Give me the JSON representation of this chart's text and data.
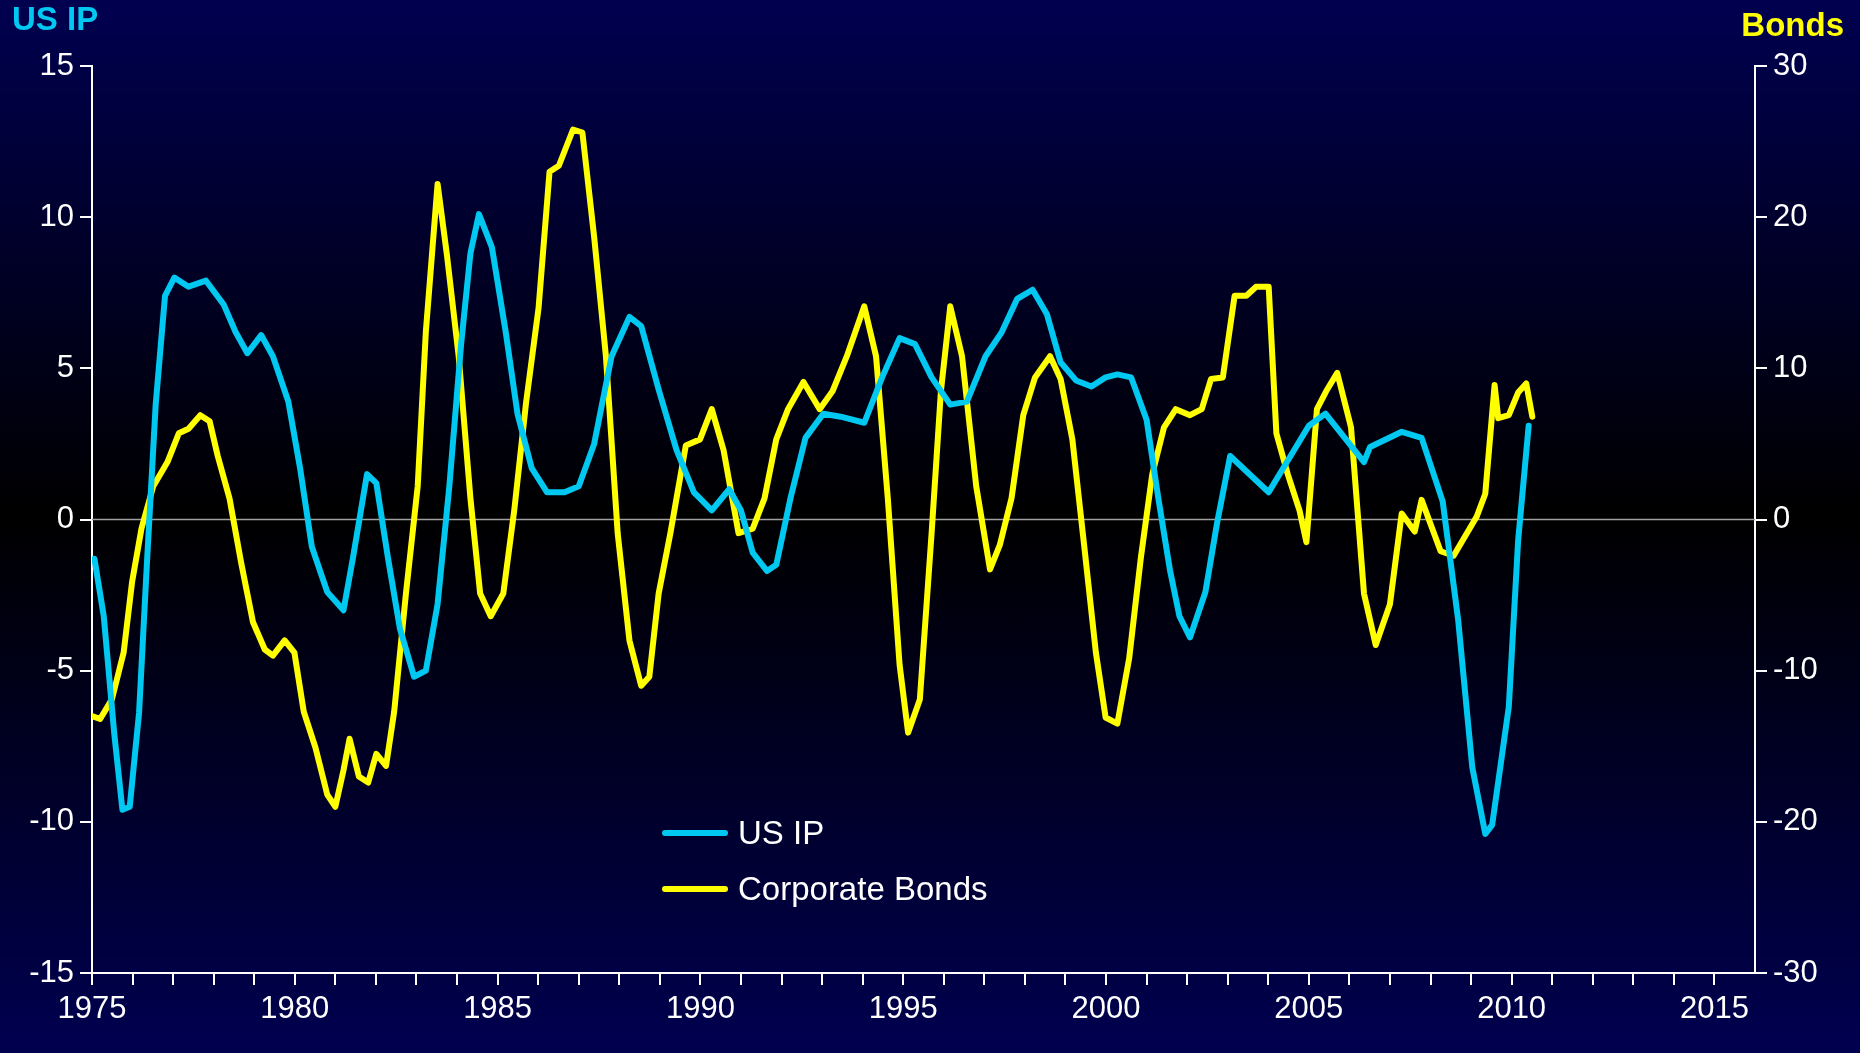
{
  "chart_data": {
    "type": "line",
    "ylabel": "US IP",
    "y2label": "Bonds",
    "legend": "bottom",
    "line_style": "solid",
    "xlim": [
      1975,
      2016
    ],
    "xticks": [
      1975,
      {
        "value": 1976,
        "label": null
      },
      {
        "value": 1977,
        "label": null
      },
      {
        "value": 1978,
        "label": null
      },
      {
        "value": 1979,
        "label": null
      },
      1980,
      {
        "value": 1981,
        "label": null
      },
      {
        "value": 1982,
        "label": null
      },
      {
        "value": 1983,
        "label": null
      },
      {
        "value": 1984,
        "label": null
      },
      1985,
      {
        "value": 1986,
        "label": null
      },
      {
        "value": 1987,
        "label": null
      },
      {
        "value": 1988,
        "label": null
      },
      {
        "value": 1989,
        "label": null
      },
      1990,
      {
        "value": 1991,
        "label": null
      },
      {
        "value": 1992,
        "label": null
      },
      {
        "value": 1993,
        "label": null
      },
      {
        "value": 1994,
        "label": null
      },
      1995,
      {
        "value": 1996,
        "label": null
      },
      {
        "value": 1997,
        "label": null
      },
      {
        "value": 1998,
        "label": null
      },
      {
        "value": 1999,
        "label": null
      },
      2000,
      {
        "value": 2001,
        "label": null
      },
      {
        "value": 2002,
        "label": null
      },
      {
        "value": 2003,
        "label": null
      },
      {
        "value": 2004,
        "label": null
      },
      2005,
      {
        "value": 2006,
        "label": null
      },
      {
        "value": 2007,
        "label": null
      },
      {
        "value": 2008,
        "label": null
      },
      {
        "value": 2009,
        "label": null
      },
      2010,
      {
        "value": 2011,
        "label": null
      },
      {
        "value": 2012,
        "label": null
      },
      {
        "value": 2013,
        "label": null
      },
      {
        "value": 2014,
        "label": null
      },
      2015
    ],
    "ylim": [
      -15,
      15
    ],
    "yticks": [
      -15,
      -10,
      -5,
      0,
      5,
      10,
      15
    ],
    "y2lim": [
      -30,
      30
    ],
    "y2ticks": [
      -30,
      -20,
      -10,
      0,
      10,
      20,
      30
    ],
    "ref_lines": [
      {
        "axis": "y",
        "value": 0,
        "color": "#a0a0a0"
      }
    ],
    "series": [
      {
        "name": "US IP",
        "color": "#00c8f0",
        "x": [
          1975.06,
          1975.29,
          1975.55,
          1975.75,
          1975.93,
          1976.16,
          1976.36,
          1976.57,
          1976.8,
          1977.03,
          1977.38,
          1977.81,
          1978.25,
          1978.54,
          1978.83,
          1979.17,
          1979.46,
          1979.84,
          1980.13,
          1980.42,
          1980.8,
          1981.2,
          1981.43,
          1981.78,
          1982.01,
          1982.3,
          1982.59,
          1982.94,
          1983.23,
          1983.52,
          1983.81,
          1984.1,
          1984.33,
          1984.54,
          1984.86,
          1985.2,
          1985.49,
          1985.84,
          1986.22,
          1986.65,
          1987.0,
          1987.38,
          1987.81,
          1988.25,
          1988.54,
          1988.97,
          1989.41,
          1989.84,
          1990.28,
          1990.71,
          1991.0,
          1991.29,
          1991.64,
          1991.87,
          1992.22,
          1992.59,
          1993.03,
          1993.46,
          1994.04,
          1994.48,
          1994.91,
          1995.29,
          1995.7,
          1996.16,
          1996.57,
          1997.03,
          1997.43,
          1997.81,
          1998.19,
          1998.54,
          1998.88,
          1999.26,
          1999.64,
          1999.99,
          2000.28,
          2000.62,
          2001.0,
          2001.29,
          2001.58,
          2001.81,
          2002.07,
          2002.45,
          2002.74,
          2003.06,
          2004.01,
          2005.0,
          2005.41,
          2006.36,
          2006.51,
          2007.29,
          2007.78,
          2008.3,
          2008.68,
          2009.03,
          2009.35,
          2009.52,
          2009.93,
          2010.16,
          2010.42
        ],
        "values": [
          -1.3,
          -3.2,
          -7.1,
          -9.6,
          -9.5,
          -6.4,
          -1.3,
          3.8,
          7.4,
          8.0,
          7.7,
          7.9,
          7.1,
          6.2,
          5.5,
          6.1,
          5.4,
          3.9,
          1.7,
          -0.9,
          -2.4,
          -3.0,
          -1.3,
          1.5,
          1.2,
          -1.3,
          -3.6,
          -5.2,
          -5.0,
          -2.8,
          1.1,
          5.8,
          8.8,
          10.1,
          9.0,
          6.2,
          3.5,
          1.7,
          0.9,
          0.9,
          1.1,
          2.5,
          5.4,
          6.7,
          6.4,
          4.3,
          2.3,
          0.9,
          0.3,
          1.0,
          0.3,
          -1.1,
          -1.7,
          -1.5,
          0.7,
          2.7,
          3.5,
          3.4,
          3.2,
          4.7,
          6.0,
          5.8,
          4.7,
          3.8,
          3.9,
          5.4,
          6.2,
          7.3,
          7.6,
          6.8,
          5.2,
          4.6,
          4.4,
          4.7,
          4.8,
          4.7,
          3.3,
          0.7,
          -1.7,
          -3.2,
          -3.9,
          -2.4,
          -0.1,
          2.1,
          0.9,
          3.1,
          3.5,
          1.9,
          2.4,
          2.9,
          2.7,
          0.6,
          -3.3,
          -8.2,
          -10.4,
          -10.1,
          -6.2,
          -0.7,
          3.1
        ]
      },
      {
        "name": "Corporate Bonds",
        "color": "#ffff00",
        "axis": "y2",
        "x": [
          1975.0,
          1975.2,
          1975.49,
          1975.78,
          1975.99,
          1976.22,
          1976.51,
          1976.86,
          1977.14,
          1977.38,
          1977.67,
          1977.9,
          1978.1,
          1978.39,
          1978.68,
          1978.97,
          1979.26,
          1979.46,
          1979.75,
          1979.99,
          1980.22,
          1980.51,
          1980.8,
          1981.0,
          1981.2,
          1981.35,
          1981.58,
          1981.81,
          1982.01,
          1982.25,
          1982.45,
          1982.74,
          1983.03,
          1983.23,
          1983.52,
          1983.75,
          1984.04,
          1984.33,
          1984.57,
          1984.83,
          1985.14,
          1985.41,
          1985.7,
          1986.01,
          1986.28,
          1986.51,
          1986.86,
          1987.09,
          1987.38,
          1987.67,
          1987.96,
          1988.25,
          1988.54,
          1988.74,
          1988.97,
          1989.26,
          1989.64,
          1989.99,
          1990.28,
          1990.57,
          1990.94,
          1991.29,
          1991.58,
          1991.87,
          1992.16,
          1992.54,
          1992.94,
          1993.26,
          1993.61,
          1994.04,
          1994.33,
          1994.62,
          1994.91,
          1995.12,
          1995.41,
          1995.7,
          1995.93,
          1996.16,
          1996.45,
          1996.8,
          1997.14,
          1997.38,
          1997.67,
          1997.96,
          1998.25,
          1998.62,
          1998.88,
          1999.17,
          1999.46,
          1999.75,
          1999.99,
          2000.28,
          2000.57,
          2000.86,
          2001.14,
          2001.43,
          2001.72,
          2002.07,
          2002.36,
          2002.59,
          2002.88,
          2003.17,
          2003.46,
          2003.7,
          2004.01,
          2004.2,
          2004.48,
          2004.77,
          2004.94,
          2005.2,
          2005.43,
          2005.7,
          2006.04,
          2006.36,
          2006.65,
          2007.0,
          2007.29,
          2007.61,
          2007.78,
          2008.25,
          2008.57,
          2009.14,
          2009.35,
          2009.58,
          2009.67,
          2009.93,
          2010.16,
          2010.36,
          2010.51
        ],
        "values": [
          -13.0,
          -13.2,
          -11.9,
          -8.8,
          -4.1,
          -0.6,
          2.2,
          3.8,
          5.7,
          6.0,
          6.9,
          6.5,
          4.2,
          1.4,
          -2.9,
          -6.8,
          -8.6,
          -9.0,
          -8.0,
          -8.8,
          -12.7,
          -15.1,
          -18.2,
          -19.0,
          -16.6,
          -14.5,
          -17.0,
          -17.4,
          -15.5,
          -16.3,
          -12.7,
          -4.9,
          2.2,
          12.4,
          22.2,
          17.5,
          10.8,
          1.4,
          -4.9,
          -6.4,
          -4.9,
          0.6,
          7.7,
          14.0,
          23.0,
          23.4,
          25.8,
          25.6,
          18.7,
          10.8,
          -0.9,
          -8.0,
          -11.0,
          -10.4,
          -4.9,
          -0.9,
          4.9,
          5.3,
          7.3,
          4.6,
          -0.9,
          -0.6,
          1.4,
          5.3,
          7.3,
          9.1,
          7.3,
          8.5,
          10.8,
          14.1,
          10.8,
          1.4,
          -9.6,
          -14.1,
          -11.9,
          -0.9,
          8.5,
          14.1,
          10.8,
          2.2,
          -3.3,
          -1.7,
          1.4,
          6.9,
          9.4,
          10.8,
          9.3,
          5.3,
          -1.7,
          -8.8,
          -13.1,
          -13.5,
          -9.2,
          -2.5,
          3.0,
          6.1,
          7.3,
          6.9,
          7.3,
          9.3,
          9.4,
          14.8,
          14.8,
          15.4,
          15.4,
          5.7,
          3.0,
          0.6,
          -1.5,
          7.3,
          8.5,
          9.7,
          6.1,
          -4.9,
          -8.3,
          -5.6,
          0.4,
          -0.8,
          1.3,
          -2.1,
          -2.4,
          0.2,
          1.7,
          8.9,
          6.7,
          6.9,
          8.4,
          9.0,
          6.8
        ]
      }
    ]
  }
}
